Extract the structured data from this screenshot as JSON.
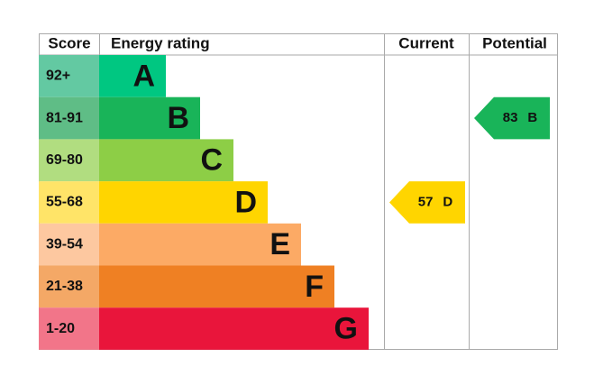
{
  "header": {
    "score": "Score",
    "rating": "Energy rating",
    "current": "Current",
    "potential": "Potential"
  },
  "bands": [
    {
      "range": "92+",
      "letter": "A",
      "color": "#00c781",
      "score_color": "#63c9a2"
    },
    {
      "range": "81-91",
      "letter": "B",
      "color": "#19b459",
      "score_color": "#5fbd86"
    },
    {
      "range": "69-80",
      "letter": "C",
      "color": "#8dce46",
      "score_color": "#b1dd80"
    },
    {
      "range": "55-68",
      "letter": "D",
      "color": "#ffd500",
      "score_color": "#ffe468"
    },
    {
      "range": "39-54",
      "letter": "E",
      "color": "#fcaa65",
      "score_color": "#fdc8a0"
    },
    {
      "range": "21-38",
      "letter": "F",
      "color": "#ef8023",
      "score_color": "#f4a866"
    },
    {
      "range": "1-20",
      "letter": "G",
      "color": "#e9153b",
      "score_color": "#f27589"
    }
  ],
  "current": {
    "value": 57,
    "letter": "D"
  },
  "potential": {
    "value": 83,
    "letter": "B"
  }
}
